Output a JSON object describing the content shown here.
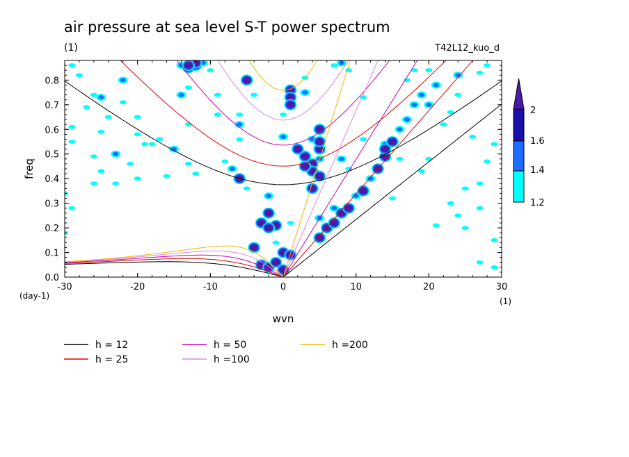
{
  "chart_data": {
    "type": "contour",
    "title": "air pressure at sea level S-T power spectrum",
    "title_unit": "(1)",
    "run_label": "T42L12_kuo_d",
    "xlabel": "wvn",
    "ylabel": "freq",
    "x_unit": "(1)",
    "y_unit": "(day-1)",
    "xlim": [
      -30,
      30
    ],
    "ylim": [
      0,
      0.88
    ],
    "xticks": [
      -30,
      -20,
      -10,
      0,
      10,
      20,
      30
    ],
    "yticks": [
      0.0,
      0.1,
      0.2,
      0.3,
      0.4,
      0.5,
      0.6,
      0.7,
      0.8
    ],
    "xtick_labels": [
      "-30",
      "-20",
      "-10",
      "0",
      "10",
      "20",
      "30"
    ],
    "ytick_labels": [
      "0.0",
      "0.1",
      "0.2",
      "0.3",
      "0.4",
      "0.5",
      "0.6",
      "0.7",
      "0.8"
    ],
    "colorbar": {
      "labels": [
        "2",
        "1.6",
        "1.4",
        "1.2"
      ],
      "levels": [
        1.2,
        1.4,
        1.6,
        2.0
      ],
      "colors": [
        "#00ffff",
        "#1e6cff",
        "#1a10a8",
        "#4a1a9e"
      ]
    },
    "dispersion_curves": [
      {
        "name": "h = 12",
        "h": 12,
        "color": "#000000"
      },
      {
        "name": "h = 25",
        "h": 25,
        "color": "#dd0000"
      },
      {
        "name": "h = 50",
        "h": 50,
        "color": "#cc00aa"
      },
      {
        "name": "h =100",
        "h": 100,
        "color": "#dd88dd"
      },
      {
        "name": "h =200",
        "h": 200,
        "color": "#eebb00"
      }
    ],
    "blobs": [
      {
        "level": 2,
        "pts": [
          [
            -13,
            0.85
          ],
          [
            -12,
            0.86
          ],
          [
            -5,
            0.8
          ],
          [
            -12,
            0.87
          ],
          [
            -13,
            0.86
          ],
          [
            -4,
            0.12
          ],
          [
            -3,
            0.05
          ],
          [
            -2,
            0.04
          ],
          [
            -1,
            0.06
          ],
          [
            0,
            0.1
          ],
          [
            1,
            0.09
          ],
          [
            0,
            0.03
          ],
          [
            -2,
            0.26
          ],
          [
            -3,
            0.22
          ],
          [
            -1,
            0.21
          ],
          [
            -2,
            0.2
          ],
          [
            1,
            0.76
          ],
          [
            1,
            0.73
          ],
          [
            1,
            0.7
          ],
          [
            5,
            0.52
          ],
          [
            4,
            0.46
          ],
          [
            4,
            0.43
          ],
          [
            5,
            0.41
          ],
          [
            4,
            0.36
          ],
          [
            5,
            0.6
          ],
          [
            5,
            0.55
          ],
          [
            3,
            0.45
          ],
          [
            3,
            0.49
          ],
          [
            6,
            0.2
          ],
          [
            7,
            0.22
          ],
          [
            8,
            0.26
          ],
          [
            9,
            0.28
          ],
          [
            5,
            0.16
          ],
          [
            11,
            0.35
          ],
          [
            13,
            0.44
          ],
          [
            14,
            0.49
          ],
          [
            14,
            0.52
          ],
          [
            15,
            0.55
          ],
          [
            -6,
            0.4
          ],
          [
            2,
            0.52
          ]
        ]
      },
      {
        "level": 1.4,
        "pts": [
          [
            -14,
            0.86
          ],
          [
            -11,
            0.87
          ],
          [
            -14,
            0.74
          ],
          [
            8,
            0.87
          ],
          [
            -6,
            0.62
          ],
          [
            5,
            0.48
          ],
          [
            8,
            0.48
          ],
          [
            14,
            0.54
          ],
          [
            16,
            0.6
          ],
          [
            17,
            0.64
          ],
          [
            18,
            0.7
          ],
          [
            19,
            0.74
          ],
          [
            21,
            0.78
          ],
          [
            24,
            0.82
          ],
          [
            12,
            0.4
          ],
          [
            10,
            0.33
          ],
          [
            -25,
            0.73
          ],
          [
            -22,
            0.8
          ],
          [
            0,
            0.57
          ],
          [
            3,
            0.75
          ],
          [
            3,
            0.5
          ],
          [
            4,
            0.56
          ],
          [
            5,
            0.24
          ],
          [
            7,
            0.28
          ],
          [
            -23,
            0.5
          ],
          [
            -7,
            0.44
          ],
          [
            -15,
            0.52
          ],
          [
            11,
            0.36
          ],
          [
            -2,
            0.33
          ],
          [
            20,
            0.7
          ]
        ]
      },
      {
        "level": 1.2,
        "pts": [
          [
            -29,
            0.86
          ],
          [
            -28,
            0.82
          ],
          [
            -26,
            0.74
          ],
          [
            -27,
            0.69
          ],
          [
            -24,
            0.65
          ],
          [
            -22,
            0.71
          ],
          [
            -29,
            0.61
          ],
          [
            -29,
            0.55
          ],
          [
            -20,
            0.58
          ],
          [
            -19,
            0.54
          ],
          [
            -18,
            0.54
          ],
          [
            -13,
            0.62
          ],
          [
            -13,
            0.77
          ],
          [
            -10,
            0.84
          ],
          [
            -9,
            0.74
          ],
          [
            -26,
            0.49
          ],
          [
            -25,
            0.43
          ],
          [
            -23,
            0.38
          ],
          [
            -30,
            0.34
          ],
          [
            -29,
            0.28
          ],
          [
            -30,
            0.18
          ],
          [
            -26,
            0.38
          ],
          [
            -20,
            0.4
          ],
          [
            -12,
            0.42
          ],
          [
            -16,
            0.41
          ],
          [
            -5,
            0.36
          ],
          [
            -9,
            0.66
          ],
          [
            -6,
            0.66
          ],
          [
            0,
            0.66
          ],
          [
            2,
            0.52
          ],
          [
            -8,
            0.47
          ],
          [
            -4,
            0.74
          ],
          [
            3,
            0.81
          ],
          [
            7,
            0.86
          ],
          [
            9,
            0.84
          ],
          [
            11,
            0.73
          ],
          [
            17,
            0.8
          ],
          [
            18,
            0.84
          ],
          [
            20,
            0.84
          ],
          [
            28,
            0.86
          ],
          [
            27,
            0.83
          ],
          [
            24,
            0.74
          ],
          [
            23,
            0.67
          ],
          [
            22,
            0.62
          ],
          [
            26,
            0.57
          ],
          [
            28,
            0.47
          ],
          [
            29,
            0.54
          ],
          [
            27,
            0.38
          ],
          [
            25,
            0.36
          ],
          [
            23,
            0.3
          ],
          [
            27,
            0.28
          ],
          [
            24,
            0.25
          ],
          [
            25,
            0.2
          ],
          [
            29,
            0.15
          ],
          [
            27,
            0.06
          ],
          [
            29,
            0.04
          ],
          [
            21,
            0.21
          ],
          [
            15,
            0.32
          ],
          [
            19,
            0.43
          ],
          [
            16,
            0.48
          ],
          [
            20,
            0.48
          ],
          [
            11,
            0.56
          ],
          [
            9,
            0.44
          ],
          [
            -20,
            0.65
          ],
          [
            -25,
            0.59
          ],
          [
            -13,
            0.46
          ],
          [
            1,
            0.22
          ],
          [
            -1,
            0.14
          ],
          [
            -6,
            0.56
          ],
          [
            -21,
            0.46
          ],
          [
            -17,
            0.56
          ]
        ]
      }
    ]
  }
}
